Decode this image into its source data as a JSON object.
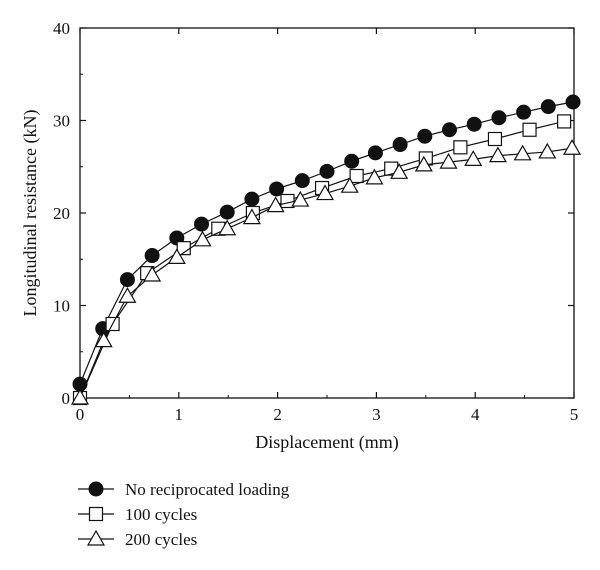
{
  "chart_data": {
    "type": "line",
    "xlabel": "Displacement (mm)",
    "ylabel": "Longitudinal resistance (kN)",
    "xlim": [
      0,
      5
    ],
    "ylim": [
      0,
      40
    ],
    "xticks": [
      "0",
      "1",
      "2",
      "3",
      "4",
      "5"
    ],
    "yticks": [
      "0",
      "10",
      "20",
      "30",
      "40"
    ],
    "grid": false,
    "legend_position": "bottom-left, below plot",
    "series": [
      {
        "name": "No reciprocated loading",
        "marker": "filled-circle",
        "x": [
          0.0,
          0.23,
          0.48,
          0.73,
          0.98,
          1.23,
          1.49,
          1.74,
          1.99,
          2.25,
          2.5,
          2.75,
          2.99,
          3.24,
          3.49,
          3.74,
          3.99,
          4.24,
          4.49,
          4.74,
          4.99
        ],
        "y": [
          1.5,
          7.5,
          12.8,
          15.4,
          17.3,
          18.8,
          20.1,
          21.5,
          22.6,
          23.5,
          24.5,
          25.6,
          26.5,
          27.4,
          28.3,
          29.0,
          29.6,
          30.3,
          30.9,
          31.5,
          32.0
        ]
      },
      {
        "name": "100 cycles",
        "marker": "open-square",
        "x": [
          0.0,
          0.33,
          0.68,
          1.05,
          1.4,
          1.75,
          2.1,
          2.45,
          2.8,
          3.15,
          3.5,
          3.85,
          4.2,
          4.55,
          4.9
        ],
        "y": [
          0.0,
          8.0,
          13.5,
          16.2,
          18.3,
          20.0,
          21.3,
          22.7,
          24.0,
          24.8,
          25.9,
          27.1,
          28.0,
          29.0,
          29.9
        ]
      },
      {
        "name": "200 cycles",
        "marker": "open-triangle",
        "x": [
          0.0,
          0.24,
          0.48,
          0.73,
          0.98,
          1.24,
          1.49,
          1.74,
          1.98,
          2.23,
          2.48,
          2.73,
          2.98,
          3.23,
          3.48,
          3.73,
          3.98,
          4.23,
          4.48,
          4.73,
          4.98
        ],
        "y": [
          0.0,
          6.2,
          11.0,
          13.3,
          15.2,
          17.1,
          18.3,
          19.5,
          20.8,
          21.4,
          22.1,
          22.9,
          23.8,
          24.4,
          25.2,
          25.5,
          25.8,
          26.2,
          26.4,
          26.6,
          27.0
        ]
      }
    ]
  }
}
